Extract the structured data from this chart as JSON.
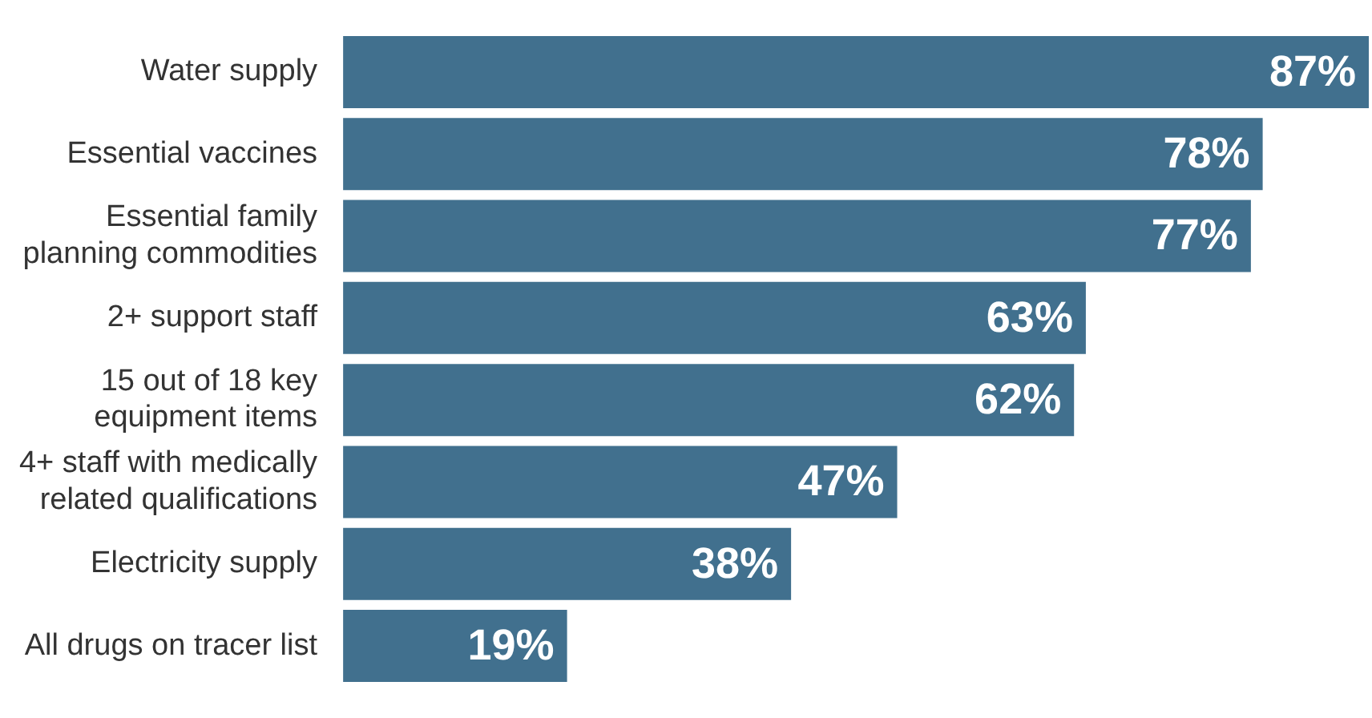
{
  "chart_data": {
    "type": "bar",
    "orientation": "horizontal",
    "categories": [
      "Water supply",
      "Essential vaccines",
      "Essential family planning commodities",
      "2+ support staff",
      "15 out of 18 key equipment items",
      "4+ staff with medically related qualifications",
      "Electricity supply",
      "All drugs on tracer list"
    ],
    "values": [
      87,
      78,
      77,
      63,
      62,
      47,
      38,
      19
    ],
    "value_labels": [
      "87%",
      "78%",
      "77%",
      "63%",
      "62%",
      "47%",
      "38%",
      "19%"
    ],
    "color": "#41708e",
    "legend": false,
    "tick_labels": "y"
  }
}
